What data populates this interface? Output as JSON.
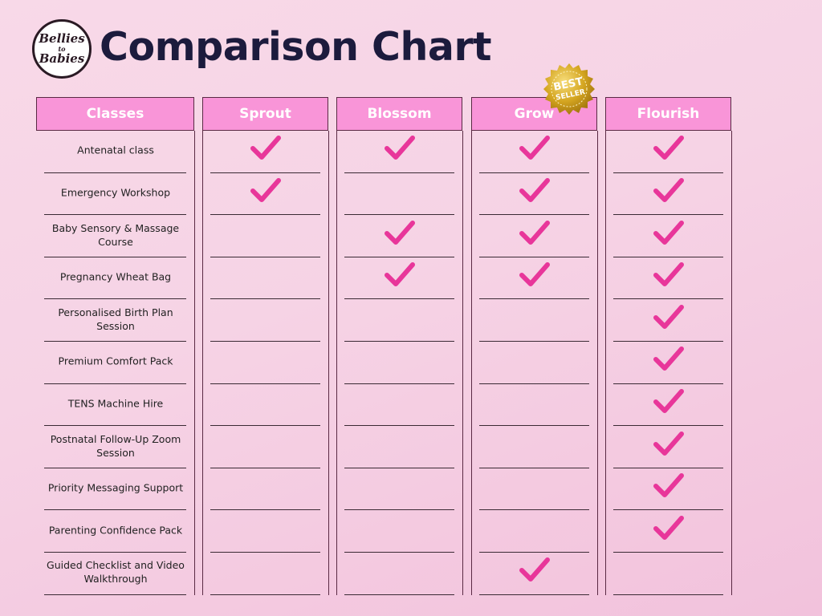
{
  "brand": {
    "logo_line1": "Bellies",
    "logo_line2": "to",
    "logo_line3": "Babies"
  },
  "title": "Comparison Chart",
  "badge": {
    "line1": "BEST",
    "line2": "SELLER"
  },
  "colors": {
    "header_bg": "#f995d8",
    "check": "#e8369a",
    "title": "#1c1b3d",
    "badge_gold": "#d4a520"
  },
  "table": {
    "headers": [
      "Classes",
      "Sprout",
      "Blossom",
      "Grow",
      "Flourish"
    ],
    "rows": [
      {
        "label": "Antenatal class",
        "included": [
          true,
          true,
          true,
          true
        ]
      },
      {
        "label": "Emergency Workshop",
        "included": [
          true,
          false,
          true,
          true
        ]
      },
      {
        "label": "Baby Sensory & Massage Course",
        "included": [
          false,
          true,
          true,
          true
        ]
      },
      {
        "label": "Pregnancy Wheat Bag",
        "included": [
          false,
          true,
          true,
          true
        ]
      },
      {
        "label": "Personalised Birth Plan Session",
        "included": [
          false,
          false,
          false,
          true
        ]
      },
      {
        "label": "Premium Comfort Pack",
        "included": [
          false,
          false,
          false,
          true
        ]
      },
      {
        "label": "TENS Machine Hire",
        "included": [
          false,
          false,
          false,
          true
        ]
      },
      {
        "label": "Postnatal Follow-Up Zoom Session",
        "included": [
          false,
          false,
          false,
          true
        ]
      },
      {
        "label": "Priority Messaging Support",
        "included": [
          false,
          false,
          false,
          true
        ]
      },
      {
        "label": "Parenting Confidence Pack",
        "included": [
          false,
          false,
          false,
          true
        ]
      },
      {
        "label": "Guided Checklist and Video Walkthrough",
        "included": [
          false,
          false,
          true,
          false
        ]
      }
    ]
  }
}
